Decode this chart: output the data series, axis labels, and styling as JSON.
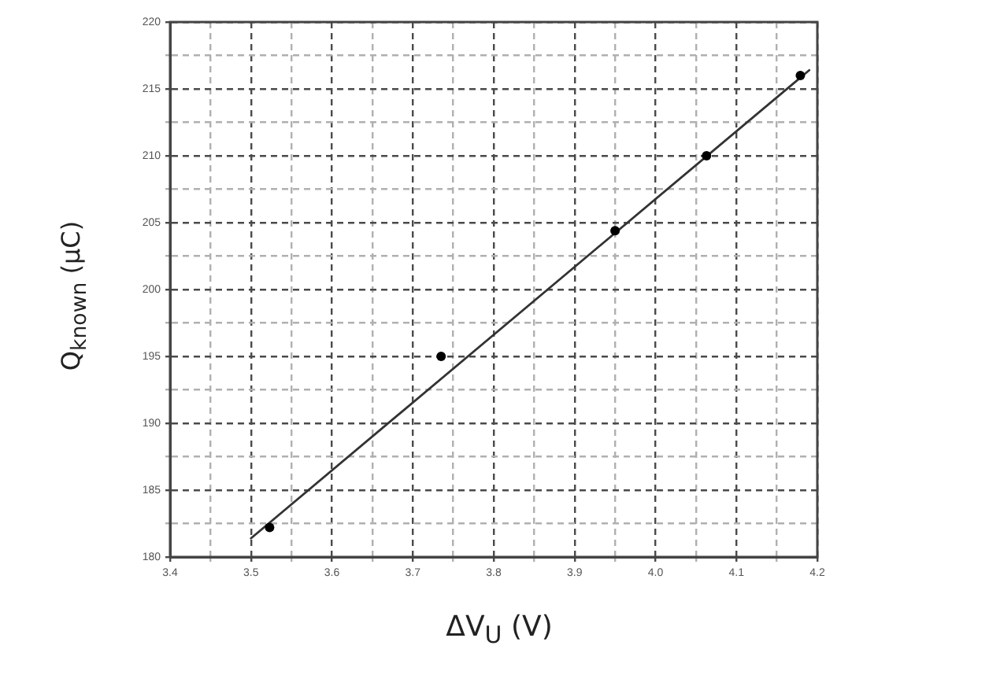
{
  "chart_data": {
    "type": "scatter",
    "xlabel": "ΔV$_{U}$ (V)",
    "ylabel": "Q$_{known}$ (μC)",
    "xlim": [
      3.4,
      4.2
    ],
    "ylim": [
      180,
      220
    ],
    "xticks": [
      3.4,
      {
        "value": 3.45,
        "label": null
      },
      3.5,
      {
        "value": 3.55,
        "label": null
      },
      3.6,
      {
        "value": 3.65,
        "label": null
      },
      3.7,
      {
        "value": 3.75,
        "label": null
      },
      3.8,
      {
        "value": 3.85,
        "label": null
      },
      3.9,
      {
        "value": 3.95,
        "label": null
      },
      {
        "value": 4,
        "label": "4.0"
      },
      {
        "value": 4.05,
        "label": null
      },
      4.1,
      {
        "value": 4.15,
        "label": null
      },
      4.2
    ],
    "yticks": [
      180,
      {
        "value": 182.5,
        "label": null
      },
      185,
      {
        "value": 187.5,
        "label": null
      },
      190,
      {
        "value": 192.5,
        "label": null
      },
      195,
      {
        "value": 197.5,
        "label": null
      },
      200,
      {
        "value": 202.5,
        "label": null
      },
      205,
      {
        "value": 207.5,
        "label": null
      },
      210,
      {
        "value": 212.5,
        "label": null
      },
      215,
      {
        "value": 217.5,
        "label": null
      },
      220
    ],
    "grid": true,
    "marker": "circle",
    "series": [
      {
        "color": "#000000",
        "x": [
          3.523,
          3.735,
          3.95,
          4.063,
          4.179
        ],
        "values": [
          182.2,
          195,
          204.4,
          210,
          216
        ]
      },
      {
        "type": "line",
        "color": "#333333",
        "marker": "none",
        "x": [
          3.5,
          4.19
        ],
        "values": [
          181.4,
          216.4
        ]
      }
    ]
  }
}
